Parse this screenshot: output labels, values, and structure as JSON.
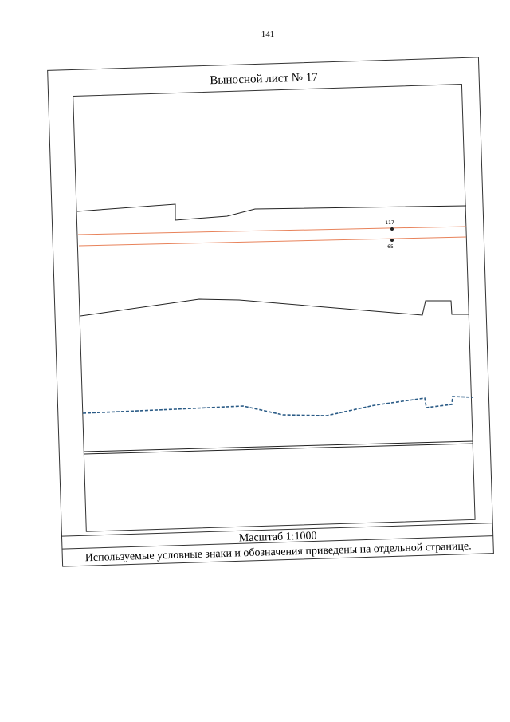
{
  "page_number": "141",
  "sheet": {
    "title": "Выносной лист № 17",
    "points": [
      {
        "label": "117"
      },
      {
        "label": "65"
      }
    ],
    "scale": "Масштаб 1:1000",
    "note": "Используемые условные знаки и обозначения приведены на отдельной странице."
  }
}
